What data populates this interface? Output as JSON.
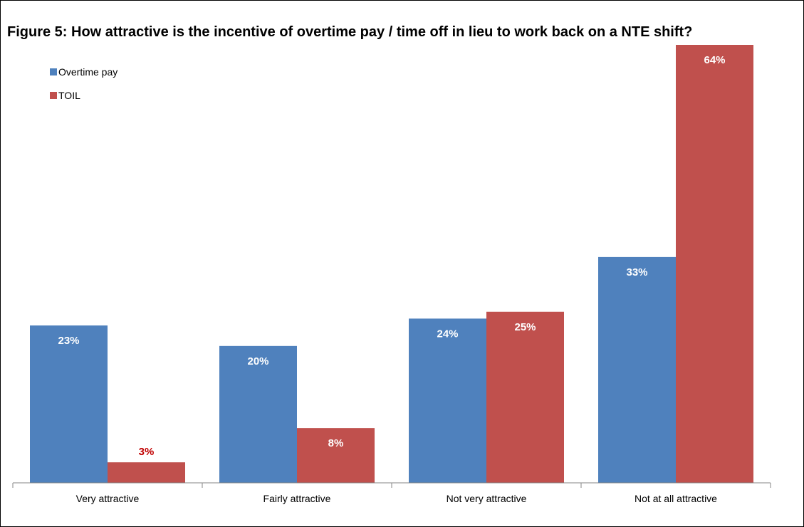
{
  "chart_data": {
    "type": "bar",
    "title": "Figure 5: How attractive is the incentive of overtime pay / time off in lieu to work back on a NTE shift?",
    "categories": [
      "Very attractive",
      "Fairly attractive",
      "Not very attractive",
      "Not at all attractive"
    ],
    "series": [
      {
        "name": "Overtime pay",
        "color": "#4F81BD",
        "values": [
          23,
          20,
          24,
          33
        ],
        "labels": [
          "23%",
          "20%",
          "24%",
          "33%"
        ]
      },
      {
        "name": "TOIL",
        "color": "#C0504D",
        "values": [
          3,
          8,
          25,
          64
        ],
        "labels": [
          "3%",
          "8%",
          "25%",
          "64%"
        ]
      }
    ],
    "value_unit": "%",
    "ylim": [
      0,
      64
    ],
    "xlabel": "",
    "ylabel": "",
    "grid": false,
    "legend_position": "top-left",
    "label_colors": {
      "inside": "#FFFFFF",
      "outside": "#C00000"
    }
  }
}
